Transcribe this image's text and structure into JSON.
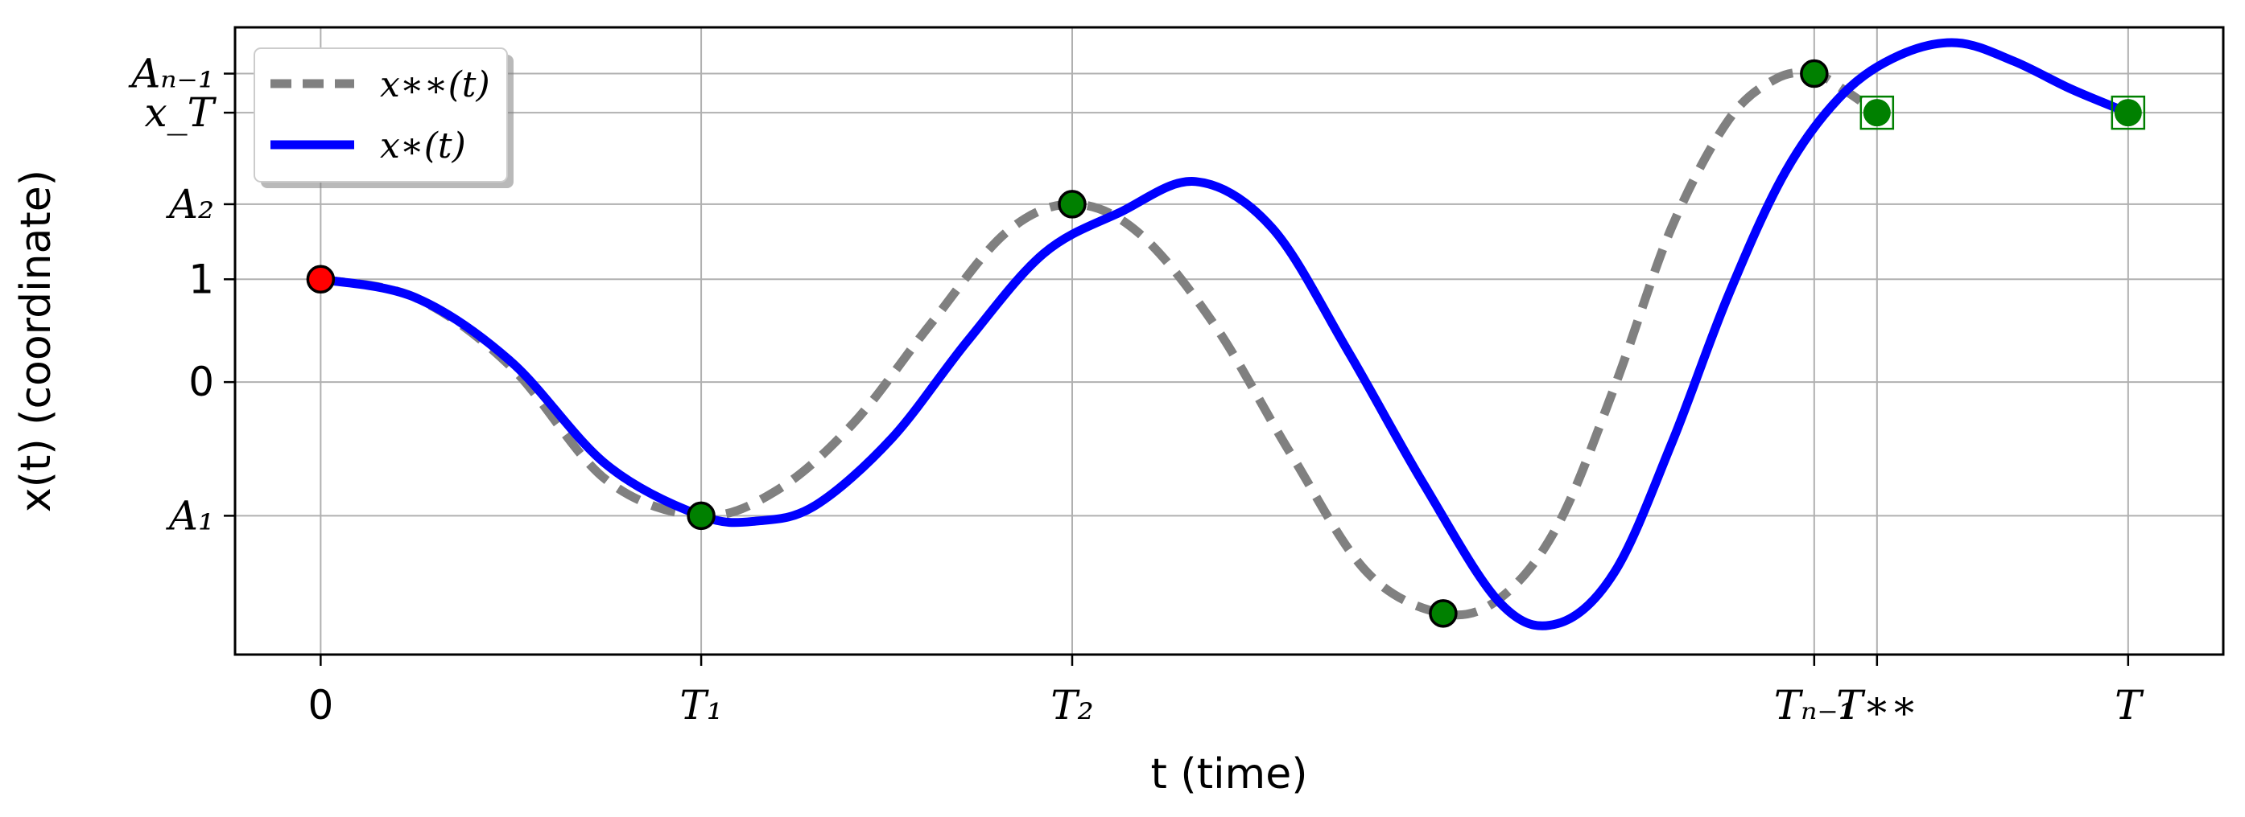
{
  "chart_data": {
    "type": "line",
    "xlabel": "t (time)",
    "ylabel": "x(t) (coordinate)",
    "xlim": [
      -0.45,
      10.0
    ],
    "ylim": [
      -2.65,
      3.45
    ],
    "grid": true,
    "legend_placement": "top-left",
    "x_ticks": [
      {
        "value": 0,
        "label": "0"
      },
      {
        "value": 2.0,
        "label": "T₁"
      },
      {
        "value": 3.95,
        "label": "T₂"
      },
      {
        "value": 7.85,
        "label": "Tₙ₋₁"
      },
      {
        "value": 8.18,
        "label": "T∗∗"
      },
      {
        "value": 9.5,
        "label": "T"
      }
    ],
    "y_ticks": [
      {
        "value": -1.3,
        "label": "A₁"
      },
      {
        "value": 0,
        "label": "0"
      },
      {
        "value": 1.0,
        "label": "1"
      },
      {
        "value": 1.73,
        "label": "A₂"
      },
      {
        "value": 2.62,
        "label": "x_T"
      },
      {
        "value": 3.0,
        "label": "Aₙ₋₁"
      }
    ],
    "series": [
      {
        "name": "x∗∗(t)",
        "style": "dashed",
        "color": "#808080",
        "x": [
          0,
          0.5,
          1.0,
          1.5,
          2.0,
          2.4,
          2.8,
          3.2,
          3.6,
          3.95,
          4.3,
          4.7,
          5.1,
          5.5,
          5.9,
          6.2,
          6.5,
          6.8,
          7.1,
          7.4,
          7.65,
          7.85,
          8.0,
          8.18
        ],
        "values": [
          1.0,
          0.82,
          0.15,
          -0.95,
          -1.3,
          -1.05,
          -0.4,
          0.55,
          1.45,
          1.73,
          1.45,
          0.55,
          -0.7,
          -1.85,
          -2.25,
          -2.1,
          -1.4,
          -0.05,
          1.5,
          2.55,
          2.95,
          3.0,
          2.85,
          2.62
        ]
      },
      {
        "name": "x∗(t)",
        "style": "solid",
        "color": "#0000ff",
        "x": [
          0,
          0.5,
          1.0,
          1.5,
          2.0,
          2.3,
          2.6,
          3.0,
          3.4,
          3.8,
          4.2,
          4.6,
          5.0,
          5.4,
          5.8,
          6.2,
          6.5,
          6.8,
          7.1,
          7.4,
          7.7,
          8.0,
          8.3,
          8.6,
          8.9,
          9.2,
          9.5
        ],
        "values": [
          1.0,
          0.82,
          0.2,
          -0.8,
          -1.3,
          -1.35,
          -1.2,
          -0.55,
          0.4,
          1.25,
          1.65,
          1.95,
          1.5,
          0.3,
          -1.0,
          -2.15,
          -2.35,
          -1.85,
          -0.6,
          0.85,
          2.05,
          2.8,
          3.18,
          3.3,
          3.12,
          2.85,
          2.62
        ]
      }
    ],
    "markers": [
      {
        "x": 0,
        "y": 1.0,
        "color": "#ff0000",
        "boxed": false
      },
      {
        "x": 2.0,
        "y": -1.3,
        "color": "#008000",
        "boxed": false
      },
      {
        "x": 3.95,
        "y": 1.73,
        "color": "#008000",
        "boxed": false
      },
      {
        "x": 5.9,
        "y": -2.25,
        "color": "#008000",
        "boxed": false
      },
      {
        "x": 7.85,
        "y": 3.0,
        "color": "#008000",
        "boxed": false
      },
      {
        "x": 8.18,
        "y": 2.62,
        "color": "#008000",
        "boxed": true
      },
      {
        "x": 9.5,
        "y": 2.62,
        "color": "#008000",
        "boxed": true
      }
    ]
  }
}
